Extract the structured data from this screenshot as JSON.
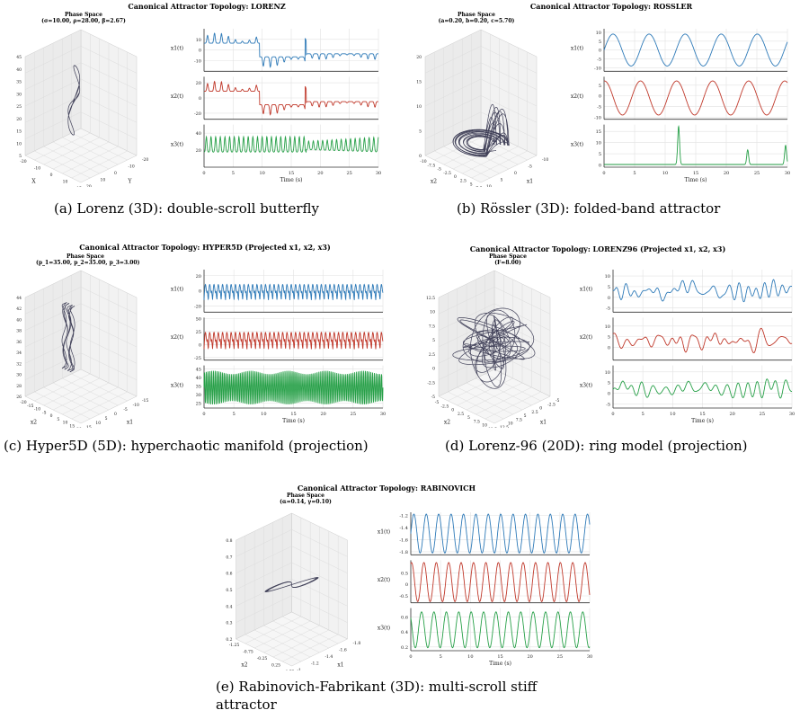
{
  "figures": [
    {
      "title": "Canonical Attractor Topology: LORENZ",
      "phase_title": "Phase Space",
      "params": "(σ=10.00, ρ=28.00, β=2.67)",
      "caption": "(a) Lorenz (3D): double-scroll butterfly"
    },
    {
      "title": "Canonical Attractor Topology: ROSSLER",
      "phase_title": "Phase Space",
      "params": "(a=0.20, b=0.20, c=5.70)",
      "caption": "(b) Rössler (3D): folded-band attractor"
    },
    {
      "title": "Canonical Attractor Topology: HYPER5D (Projected x1, x2, x3)",
      "phase_title": "Phase Space",
      "params": "(p_1=35.00, p_2=35.00, p_3=3.00)",
      "caption": "(c) Hyper5D (5D): hyperchaotic manifold (projection)"
    },
    {
      "title": "Canonical Attractor Topology: LORENZ96 (Projected x1, x2, x3)",
      "phase_title": "Phase Space",
      "params": "(F=8.00)",
      "caption": "(d) Lorenz-96 (20D): ring model (projection)"
    },
    {
      "title": "Canonical Attractor Topology: RABINOVICH",
      "phase_title": "Phase Space",
      "params": "(α=0.14, γ=0.10)",
      "caption": "(e) Rabinovich-Fabrikant (3D): multi-scroll stiff attractor"
    }
  ],
  "colors": {
    "x1": "#2e7ab8",
    "x2": "#c0392b",
    "x3": "#27a048",
    "phase": "#2e2e48",
    "grid": "#e2e2e2"
  },
  "chart_data": [
    {
      "type": "line",
      "system": "LORENZ",
      "xlabel": "Time (s)",
      "xlim": [
        0,
        30
      ],
      "xticks": [
        0,
        5,
        10,
        15,
        20,
        25,
        30
      ],
      "series": [
        {
          "name": "x1(t)",
          "yticks": [
            -10,
            0,
            10
          ],
          "ylim": [
            -20,
            20
          ],
          "shape": "lorenz",
          "period": 1.2,
          "amp": 16,
          "offset": 0,
          "switch": 17.6
        },
        {
          "name": "x2(t)",
          "yticks": [
            -20,
            0,
            20
          ],
          "ylim": [
            -28,
            28
          ],
          "shape": "lorenz",
          "period": 1.2,
          "amp": 22,
          "offset": 0,
          "switch": 17.6
        },
        {
          "name": "x3(t)",
          "yticks": [
            20,
            40
          ],
          "ylim": [
            0,
            50
          ],
          "shape": "lorenz-z",
          "period": 0.8,
          "amp": 18,
          "offset": 24,
          "switch": 17.6
        }
      ],
      "phase_axes": {
        "z_ticks": [
          5,
          10,
          15,
          20,
          25,
          30,
          35,
          40,
          45
        ],
        "y_label": "Y",
        "x_label": "X",
        "y_ticks": [
          -20,
          -10,
          0,
          10,
          20
        ],
        "x_ticks": [
          -20,
          -10,
          0,
          10,
          15
        ]
      }
    },
    {
      "type": "line",
      "system": "ROSSLER",
      "xlabel": "Time (s)",
      "xlim": [
        0,
        30
      ],
      "xticks": [
        0,
        5,
        10,
        15,
        20,
        25,
        30
      ],
      "series": [
        {
          "name": "x1(t)",
          "yticks": [
            -10,
            -5,
            0,
            5,
            10
          ],
          "ylim": [
            -12,
            12
          ],
          "shape": "sine",
          "period": 5.9,
          "amp": 9,
          "offset": 0
        },
        {
          "name": "x2(t)",
          "yticks": [
            -10,
            -5,
            0,
            5
          ],
          "ylim": [
            -11,
            9
          ],
          "shape": "sine",
          "period": 5.9,
          "amp": 8,
          "offset": -1,
          "phase": 1.5
        },
        {
          "name": "x3(t)",
          "yticks": [
            0,
            5,
            10,
            15
          ],
          "ylim": [
            -1,
            18
          ],
          "shape": "spikes",
          "spikes": [
            [
              12.2,
              17
            ],
            [
              23.5,
              6.5
            ],
            [
              29.7,
              8.5
            ]
          ]
        }
      ],
      "phase_axes": {
        "z_ticks": [
          0,
          5,
          10,
          15,
          20
        ],
        "x_label": "x2",
        "y_label": "x1",
        "x_ticks": [
          -10.0,
          -7.5,
          -5.0,
          -2.5,
          0.0,
          2.5,
          5.0,
          7.5
        ],
        "y_ticks": [
          -10,
          -5,
          0,
          5,
          10
        ]
      }
    },
    {
      "type": "line",
      "system": "HYPER5D",
      "xlabel": "Time (s)",
      "xlim": [
        0,
        30
      ],
      "xticks": [
        0,
        5,
        10,
        15,
        20,
        25,
        30
      ],
      "series": [
        {
          "name": "x1(t)",
          "yticks": [
            -20,
            0,
            20
          ],
          "ylim": [
            -28,
            28
          ],
          "shape": "saw",
          "period": 0.72,
          "amp": 24,
          "offset": 0
        },
        {
          "name": "x2(t)",
          "yticks": [
            -25,
            0,
            25,
            50
          ],
          "ylim": [
            -30,
            52
          ],
          "shape": "saw",
          "period": 0.72,
          "amp": 38,
          "offset": 10
        },
        {
          "name": "x3(t)",
          "yticks": [
            25,
            30,
            35,
            40,
            45
          ],
          "ylim": [
            22,
            47
          ],
          "shape": "dense",
          "period": 0.3,
          "amp": 10,
          "offset": 34
        }
      ],
      "phase_axes": {
        "z_ticks": [
          26,
          28,
          30,
          32,
          34,
          36,
          38,
          40,
          42,
          44
        ],
        "x_label": "x2",
        "y_label": "x1",
        "x_ticks": [
          -20,
          -15,
          -10,
          -5,
          0,
          5,
          10,
          15,
          20
        ],
        "y_ticks": [
          -15,
          -10,
          -5,
          0,
          5,
          10,
          15
        ]
      }
    },
    {
      "type": "line",
      "system": "LORENZ96",
      "xlabel": "Time (s)",
      "xlim": [
        0,
        30
      ],
      "xticks": [
        0,
        5,
        10,
        15,
        20,
        25,
        30
      ],
      "series": [
        {
          "name": "x1(t)",
          "yticks": [
            -5,
            0,
            5,
            10
          ],
          "ylim": [
            -7,
            13
          ],
          "shape": "noise",
          "amp": 5,
          "offset": 3,
          "seed": 3
        },
        {
          "name": "x2(t)",
          "yticks": [
            0,
            5,
            10
          ],
          "ylim": [
            -6,
            14
          ],
          "shape": "noise",
          "amp": 5.5,
          "offset": 3,
          "seed": 7
        },
        {
          "name": "x3(t)",
          "yticks": [
            -5,
            0,
            5,
            10
          ],
          "ylim": [
            -7,
            13
          ],
          "shape": "noise",
          "amp": 5,
          "offset": 2,
          "seed": 11
        }
      ],
      "phase_axes": {
        "z_ticks": [
          -5.0,
          -2.5,
          0.0,
          2.5,
          5.0,
          7.5,
          10.0,
          12.5
        ],
        "x_label": "x2",
        "y_label": "x1",
        "x_ticks": [
          -5.0,
          -2.5,
          0.0,
          2.5,
          5.0,
          7.5,
          10.0,
          12.5
        ],
        "y_ticks": [
          -5.0,
          -2.5,
          0.0,
          2.5,
          5.0,
          7.5,
          10.0,
          12.5
        ]
      }
    },
    {
      "type": "line",
      "system": "RABINOVICH",
      "xlabel": "Time (s)",
      "xlim": [
        0,
        30
      ],
      "xticks": [
        0,
        5,
        10,
        15,
        20,
        25,
        30
      ],
      "series": [
        {
          "name": "x1(t)",
          "yticks": [
            -1.2,
            -1.4,
            -1.6,
            -1.8
          ],
          "ylim": [
            -1.85,
            -1.15
          ],
          "shape": "sine",
          "period": 2.08,
          "amp": 0.32,
          "offset": -1.5
        },
        {
          "name": "x2(t)",
          "yticks": [
            0.5,
            0.0,
            -0.5
          ],
          "ylim": [
            -0.8,
            1.05
          ],
          "shape": "sine",
          "period": 2.08,
          "amp": 0.85,
          "offset": 0.1,
          "phase": 1.2
        },
        {
          "name": "x3(t)",
          "yticks": [
            0.2,
            0.4,
            0.6
          ],
          "ylim": [
            0.15,
            0.72
          ],
          "shape": "sine",
          "period": 2.08,
          "amp": 0.24,
          "offset": 0.43,
          "phase": 2.4
        }
      ],
      "phase_axes": {
        "z_ticks": [
          0.2,
          0.3,
          0.4,
          0.5,
          0.6,
          0.7,
          0.8
        ],
        "x_label": "x2",
        "y_label": "x1",
        "x_ticks": [
          -1.25,
          -0.75,
          -0.25,
          0.25,
          0.75
        ],
        "y_ticks": [
          -1.8,
          -1.6,
          -1.4,
          -1.2,
          -1.0
        ]
      }
    }
  ]
}
